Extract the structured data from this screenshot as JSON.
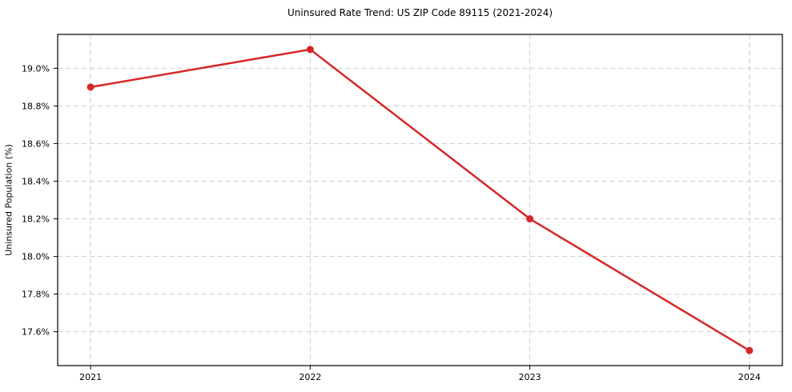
{
  "figure": {
    "background": "#ffffff"
  },
  "chart_data": {
    "type": "line",
    "title": "Uninsured Rate Trend: US ZIP Code 89115 (2021-2024)",
    "xlabel": "",
    "ylabel": "Uninsured Population (%)",
    "x": [
      2021,
      2022,
      2023,
      2024
    ],
    "x_tick_labels": [
      "2021",
      "2022",
      "2023",
      "2024"
    ],
    "series": [
      {
        "name": "Uninsured Rate",
        "values": [
          18.9,
          19.1,
          18.2,
          17.5
        ],
        "color": "#d62728",
        "line_width": 2.5,
        "marker": "circle",
        "marker_radius": 4.5
      }
    ],
    "xlim": [
      2020.85,
      2024.15
    ],
    "ylim": [
      17.42,
      19.18
    ],
    "yticks": [
      17.6,
      17.8,
      18.0,
      18.2,
      18.4,
      18.6,
      18.8,
      19.0
    ],
    "ytick_labels": [
      "17.6%",
      "17.8%",
      "18.0%",
      "18.2%",
      "18.4%",
      "18.6%",
      "18.8%",
      "19.0%"
    ],
    "grid": true,
    "grid_color": "#cdcdcd",
    "grid_dash": "6,4",
    "axis_color": "#000000",
    "legend": "none"
  }
}
